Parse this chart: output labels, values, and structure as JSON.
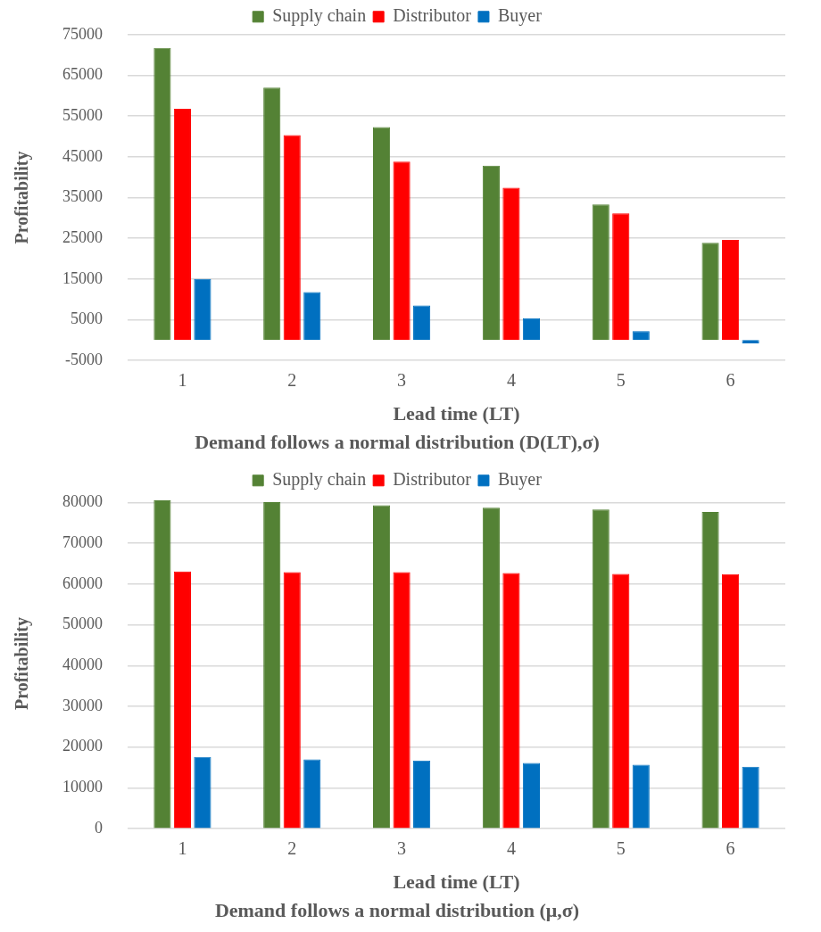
{
  "chart_data": [
    {
      "type": "bar",
      "title": "Demand follows a normal distribution (D(LT),σ)",
      "xlabel": "Lead time (LT)",
      "ylabel": "Profitability",
      "categories": [
        "1",
        "2",
        "3",
        "4",
        "5",
        "6"
      ],
      "series": [
        {
          "name": "Supply chain",
          "color": "#548235",
          "values": [
            71700,
            62000,
            52300,
            42800,
            33300,
            23900
          ]
        },
        {
          "name": "Distributor",
          "color": "#ff0000",
          "values": [
            56800,
            50300,
            43800,
            37400,
            31100,
            24600
          ]
        },
        {
          "name": "Buyer",
          "color": "#0070c0",
          "values": [
            15000,
            11800,
            8500,
            5400,
            2200,
            -800
          ]
        }
      ],
      "ylim": [
        -5000,
        75000
      ],
      "yticks": [
        -5000,
        5000,
        15000,
        25000,
        35000,
        45000,
        55000,
        65000,
        75000
      ],
      "grid": "y",
      "legend": "top"
    },
    {
      "type": "bar",
      "title": "Demand follows a normal distribution (μ,σ)",
      "xlabel": "Lead time (LT)",
      "ylabel": "Profitability",
      "categories": [
        "1",
        "2",
        "3",
        "4",
        "5",
        "6"
      ],
      "series": [
        {
          "name": "Supply chain",
          "color": "#548235",
          "values": [
            80500,
            80100,
            79300,
            78700,
            78300,
            77700
          ]
        },
        {
          "name": "Distributor",
          "color": "#ff0000",
          "values": [
            63100,
            62900,
            62900,
            62700,
            62500,
            62400
          ]
        },
        {
          "name": "Buyer",
          "color": "#0070c0",
          "values": [
            17600,
            17000,
            16700,
            16100,
            15700,
            15200
          ]
        }
      ],
      "ylim": [
        0,
        81000
      ],
      "yticks": [
        0,
        10000,
        20000,
        30000,
        40000,
        50000,
        60000,
        70000,
        80000
      ],
      "grid": "y",
      "legend": "top"
    }
  ]
}
